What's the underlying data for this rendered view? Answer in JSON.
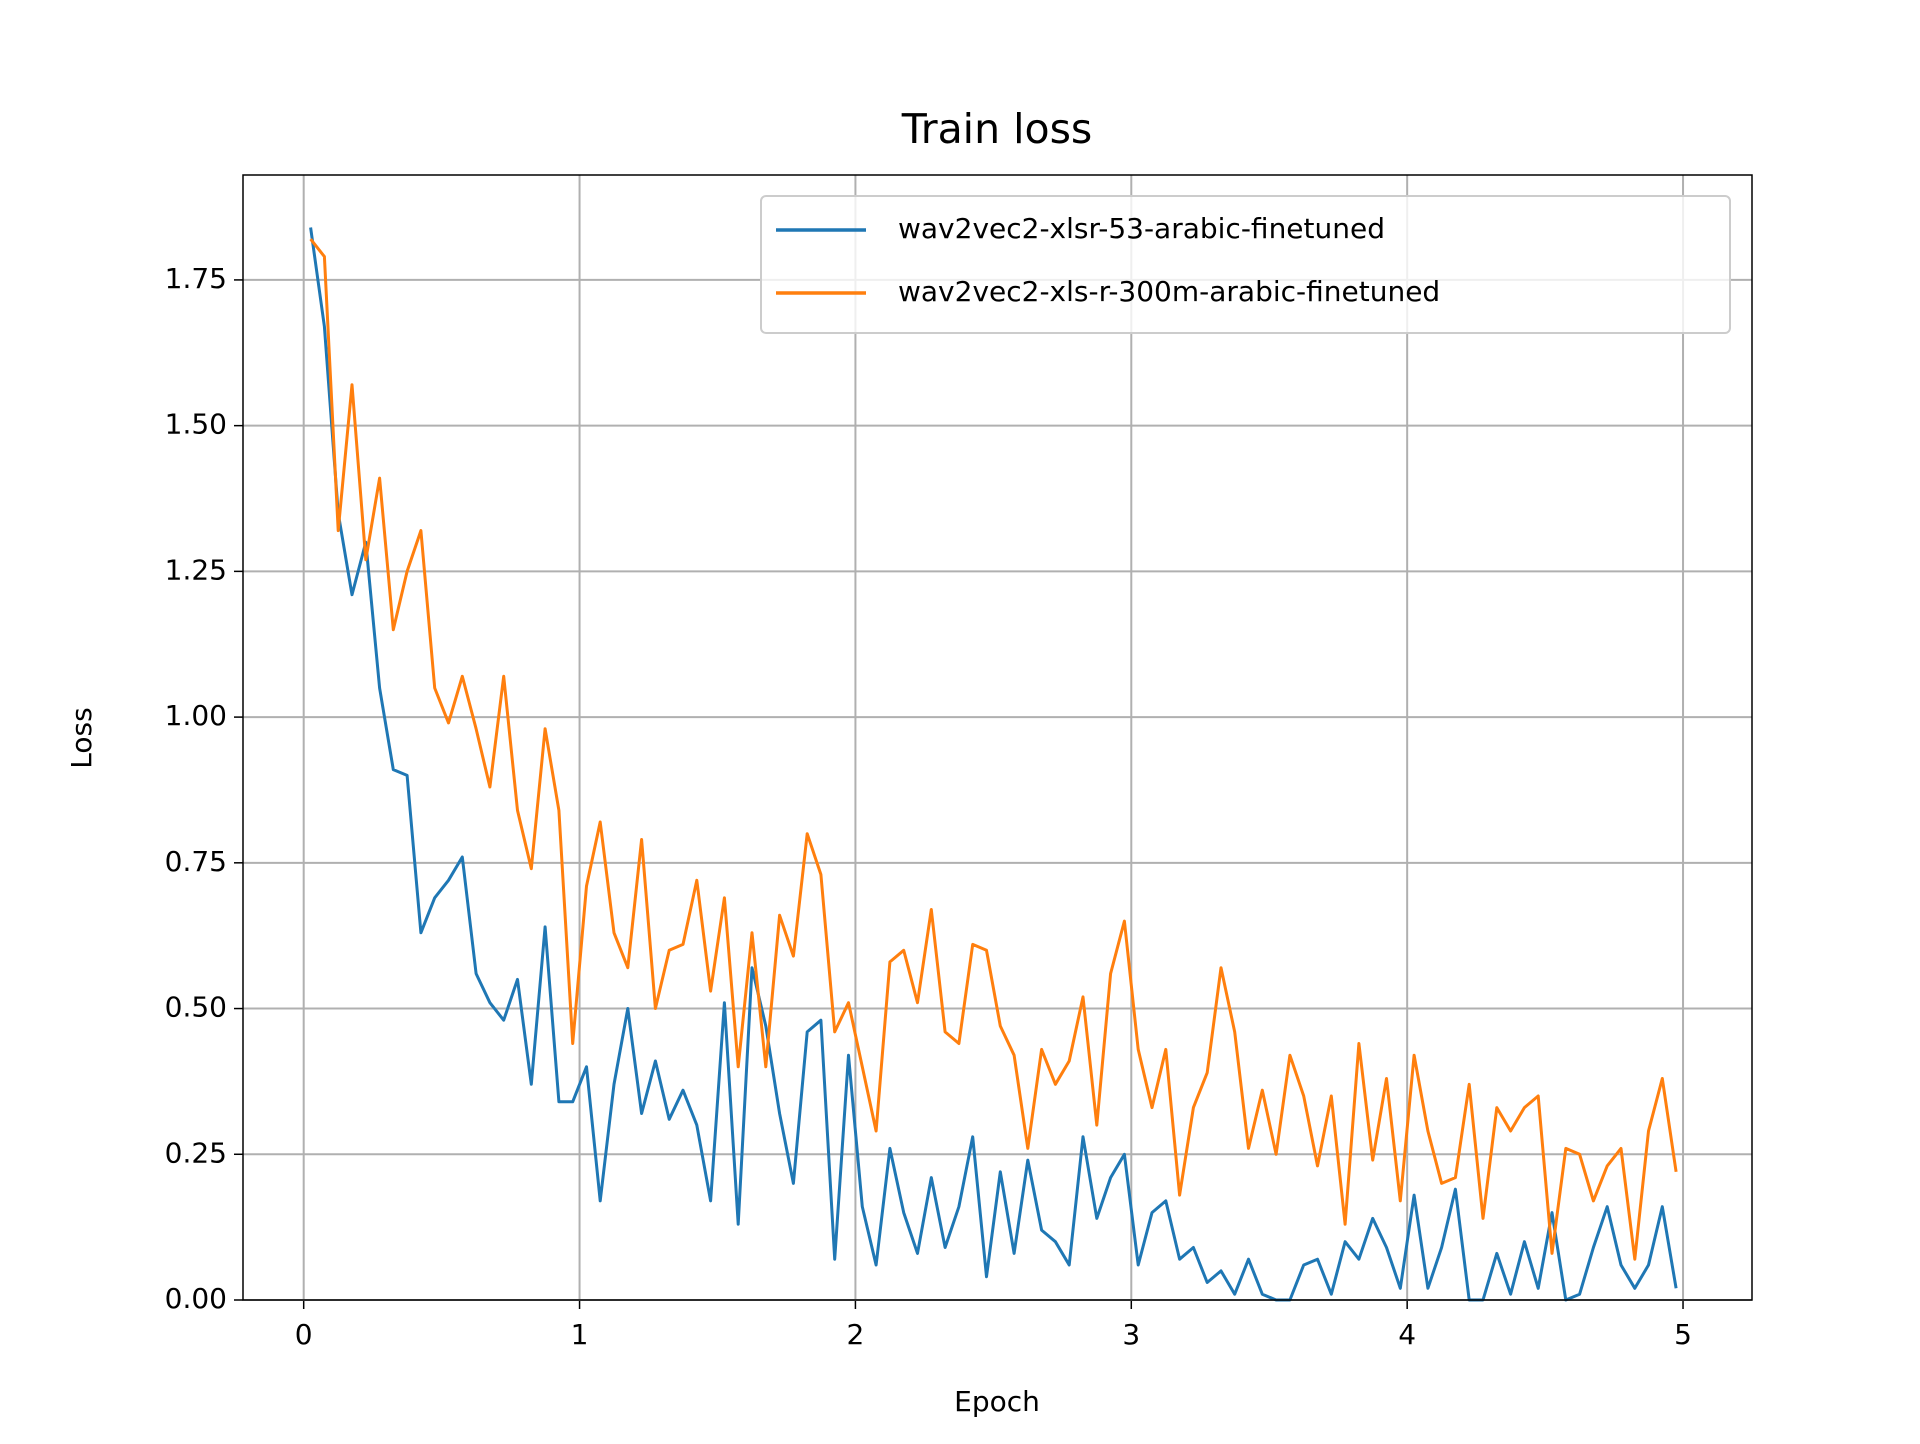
{
  "chart_data": {
    "type": "line",
    "title": "Train loss",
    "xlabel": "Epoch",
    "ylabel": "Loss",
    "x": [
      0.025,
      0.075,
      0.125,
      0.175,
      0.225,
      0.275,
      0.325,
      0.375,
      0.425,
      0.475,
      0.525,
      0.575,
      0.625,
      0.675,
      0.725,
      0.775,
      0.825,
      0.875,
      0.925,
      0.975,
      1.025,
      1.075,
      1.125,
      1.175,
      1.225,
      1.275,
      1.325,
      1.375,
      1.425,
      1.475,
      1.525,
      1.575,
      1.625,
      1.675,
      1.725,
      1.775,
      1.825,
      1.875,
      1.925,
      1.975,
      2.025,
      2.075,
      2.125,
      2.175,
      2.225,
      2.275,
      2.325,
      2.375,
      2.425,
      2.475,
      2.525,
      2.575,
      2.625,
      2.675,
      2.725,
      2.775,
      2.825,
      2.875,
      2.925,
      2.975,
      3.025,
      3.075,
      3.125,
      3.175,
      3.225,
      3.275,
      3.325,
      3.375,
      3.425,
      3.475,
      3.525,
      3.575,
      3.625,
      3.675,
      3.725,
      3.775,
      3.825,
      3.875,
      3.925,
      3.975,
      4.025,
      4.075,
      4.125,
      4.175,
      4.225,
      4.275,
      4.325,
      4.375,
      4.425,
      4.475,
      4.525,
      4.575,
      4.625,
      4.675,
      4.725,
      4.775,
      4.825,
      4.875,
      4.925,
      4.975
    ],
    "series": [
      {
        "name": "wav2vec2-xlsr-53-arabic-finetuned",
        "color": "#1f77b4",
        "values": [
          1.84,
          1.67,
          1.35,
          1.21,
          1.3,
          1.05,
          0.91,
          0.9,
          0.63,
          0.69,
          0.72,
          0.76,
          0.56,
          0.51,
          0.48,
          0.55,
          0.37,
          0.64,
          0.34,
          0.34,
          0.4,
          0.17,
          0.37,
          0.5,
          0.32,
          0.41,
          0.31,
          0.36,
          0.3,
          0.17,
          0.51,
          0.13,
          0.57,
          0.47,
          0.32,
          0.2,
          0.46,
          0.48,
          0.07,
          0.42,
          0.16,
          0.06,
          0.26,
          0.15,
          0.08,
          0.21,
          0.09,
          0.16,
          0.28,
          0.04,
          0.22,
          0.08,
          0.24,
          0.12,
          0.1,
          0.06,
          0.28,
          0.14,
          0.21,
          0.25,
          0.06,
          0.15,
          0.17,
          0.07,
          0.09,
          0.03,
          0.05,
          0.01,
          0.07,
          0.01,
          0.0,
          0.0,
          0.06,
          0.07,
          0.01,
          0.1,
          0.07,
          0.14,
          0.09,
          0.02,
          0.18,
          0.02,
          0.09,
          0.19,
          0.0,
          0.0,
          0.08,
          0.01,
          0.1,
          0.02,
          0.15,
          0.0,
          0.01,
          0.09,
          0.16,
          0.06,
          0.02,
          0.06,
          0.16,
          0.02
        ]
      },
      {
        "name": "wav2vec2-xls-r-300m-arabic-finetuned",
        "color": "#ff7f0e",
        "values": [
          1.82,
          1.79,
          1.32,
          1.57,
          1.27,
          1.41,
          1.15,
          1.25,
          1.32,
          1.05,
          0.99,
          1.07,
          0.98,
          0.88,
          1.07,
          0.84,
          0.74,
          0.98,
          0.84,
          0.44,
          0.71,
          0.82,
          0.63,
          0.57,
          0.79,
          0.5,
          0.6,
          0.61,
          0.72,
          0.53,
          0.69,
          0.4,
          0.63,
          0.4,
          0.66,
          0.59,
          0.8,
          0.73,
          0.46,
          0.51,
          0.4,
          0.29,
          0.58,
          0.6,
          0.51,
          0.67,
          0.46,
          0.44,
          0.61,
          0.6,
          0.47,
          0.42,
          0.26,
          0.43,
          0.37,
          0.41,
          0.52,
          0.3,
          0.56,
          0.65,
          0.43,
          0.33,
          0.43,
          0.18,
          0.33,
          0.39,
          0.57,
          0.46,
          0.26,
          0.36,
          0.25,
          0.42,
          0.35,
          0.23,
          0.35,
          0.13,
          0.44,
          0.24,
          0.38,
          0.17,
          0.42,
          0.29,
          0.2,
          0.21,
          0.37,
          0.14,
          0.33,
          0.29,
          0.33,
          0.35,
          0.08,
          0.26,
          0.25,
          0.17,
          0.23,
          0.26,
          0.07,
          0.29,
          0.38,
          0.22
        ]
      }
    ],
    "xlim": [
      -0.22,
      5.25
    ],
    "xticks": [
      0,
      1,
      2,
      3,
      4,
      5
    ],
    "ylim": [
      0,
      1.93
    ],
    "yticks": [
      {
        "value": 0,
        "label": "0.00"
      },
      0.25,
      {
        "value": 0.5,
        "label": "0.50"
      },
      0.75,
      {
        "value": 1,
        "label": "1.00"
      },
      1.25,
      {
        "value": 1.5,
        "label": "1.50"
      },
      1.75
    ],
    "grid": true,
    "legend": "upper right"
  }
}
